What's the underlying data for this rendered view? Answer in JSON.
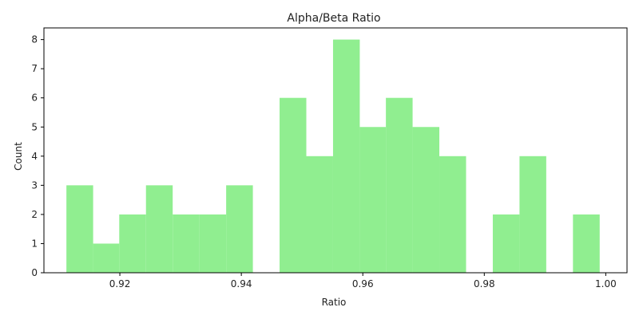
{
  "chart_data": {
    "type": "bar",
    "title": "Alpha/Beta Ratio",
    "xlabel": "Ratio",
    "ylabel": "Count",
    "xlim": [
      0.9075,
      1.0035
    ],
    "ylim": [
      0,
      8.4
    ],
    "grid": false,
    "x_ticks": [
      0.92,
      0.94,
      0.96,
      0.98,
      1.0
    ],
    "x_tick_labels": [
      "0.92",
      "0.94",
      "0.96",
      "0.98",
      "1.00"
    ],
    "y_ticks": [
      0,
      1,
      2,
      3,
      4,
      5,
      6,
      7,
      8
    ],
    "y_tick_labels": [
      "0",
      "1",
      "2",
      "3",
      "4",
      "5",
      "6",
      "7",
      "8"
    ],
    "bar_color": "#90ee90",
    "bins": [
      {
        "start": 0.9112,
        "end": 0.9156,
        "count": 3
      },
      {
        "start": 0.9156,
        "end": 0.9199,
        "count": 1
      },
      {
        "start": 0.9199,
        "end": 0.9243,
        "count": 2
      },
      {
        "start": 0.9243,
        "end": 0.9287,
        "count": 3
      },
      {
        "start": 0.9287,
        "end": 0.9331,
        "count": 2
      },
      {
        "start": 0.9331,
        "end": 0.9375,
        "count": 2
      },
      {
        "start": 0.9375,
        "end": 0.9419,
        "count": 3
      },
      {
        "start": 0.9419,
        "end": 0.9463,
        "count": 0
      },
      {
        "start": 0.9463,
        "end": 0.9507,
        "count": 6
      },
      {
        "start": 0.9507,
        "end": 0.9551,
        "count": 4
      },
      {
        "start": 0.9551,
        "end": 0.9595,
        "count": 8
      },
      {
        "start": 0.9595,
        "end": 0.9638,
        "count": 5
      },
      {
        "start": 0.9638,
        "end": 0.9682,
        "count": 6
      },
      {
        "start": 0.9682,
        "end": 0.9726,
        "count": 5
      },
      {
        "start": 0.9726,
        "end": 0.977,
        "count": 4
      },
      {
        "start": 0.977,
        "end": 0.9814,
        "count": 0
      },
      {
        "start": 0.9814,
        "end": 0.9858,
        "count": 2
      },
      {
        "start": 0.9858,
        "end": 0.9902,
        "count": 4
      },
      {
        "start": 0.9902,
        "end": 0.9946,
        "count": 0
      },
      {
        "start": 0.9946,
        "end": 0.999,
        "count": 2
      }
    ]
  }
}
